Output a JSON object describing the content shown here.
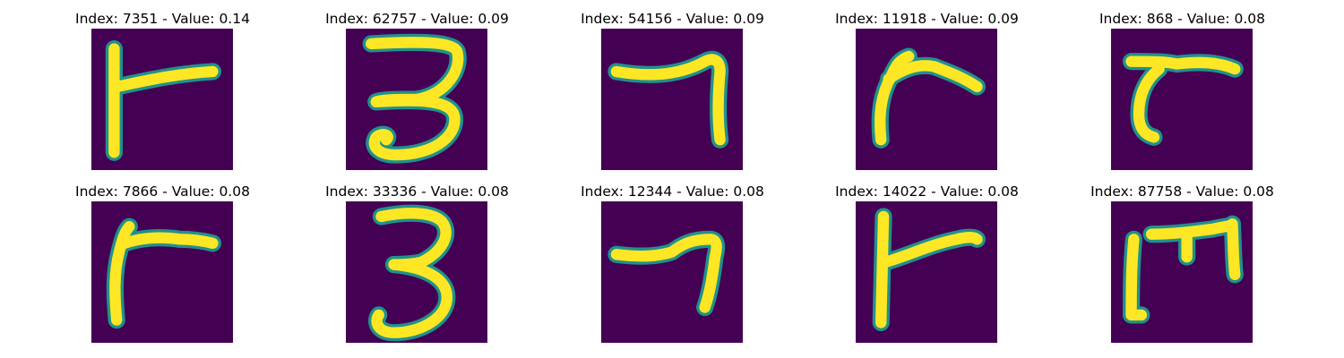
{
  "palette": {
    "background": "#440154",
    "mid": "#21918c",
    "bright": "#fde725"
  },
  "panels": [
    {
      "title": "Index: 7351 - Value: 0.14",
      "glyph": "r"
    },
    {
      "title": "Index: 62757 - Value: 0.09",
      "glyph": "3"
    },
    {
      "title": "Index: 54156 - Value: 0.09",
      "glyph": "7"
    },
    {
      "title": "Index: 11918 - Value: 0.09",
      "glyph": "r"
    },
    {
      "title": "Index: 868 - Value: 0.08",
      "glyph": "r"
    },
    {
      "title": "Index: 7866 - Value: 0.08",
      "glyph": "r"
    },
    {
      "title": "Index: 33336 - Value: 0.08",
      "glyph": "3"
    },
    {
      "title": "Index: 12344 - Value: 0.08",
      "glyph": "7"
    },
    {
      "title": "Index: 14022 - Value: 0.08",
      "glyph": "r"
    },
    {
      "title": "Index: 87758 - Value: 0.08",
      "glyph": "m"
    }
  ]
}
